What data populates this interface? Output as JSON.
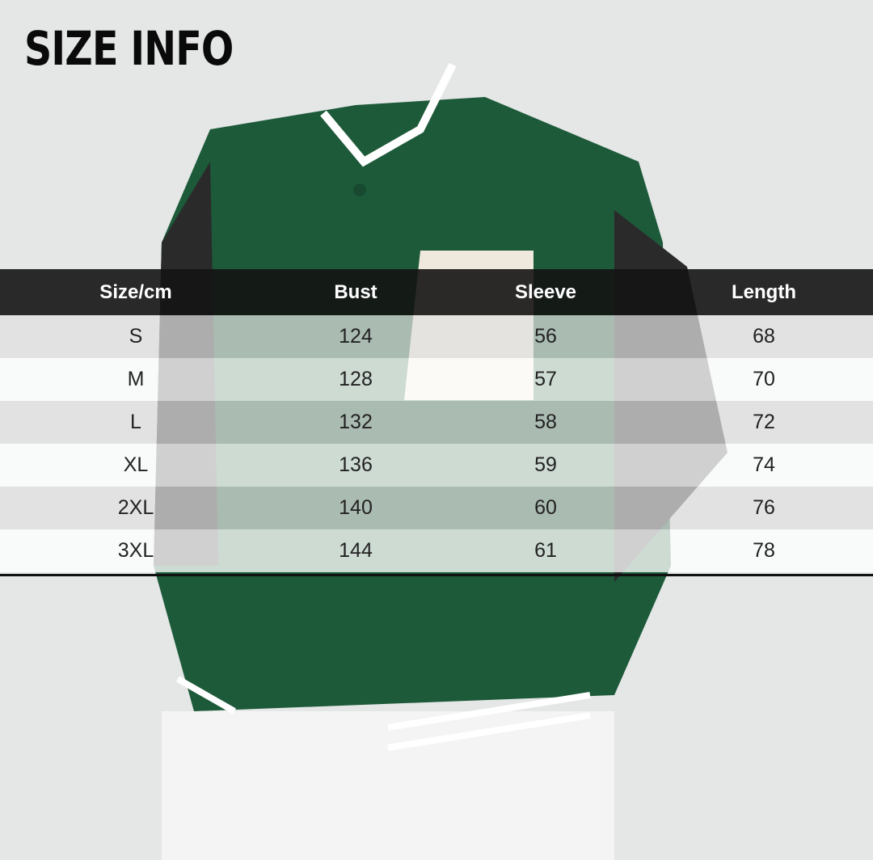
{
  "title": "SIZE INFO",
  "colors": {
    "jacket": "#1d5a3a",
    "sleeve": "#262626",
    "header": "#141414"
  },
  "table": {
    "headers": [
      "Size/cm",
      "Bust",
      "Sleeve",
      "Length"
    ],
    "rows": [
      [
        "S",
        "124",
        "56",
        "68"
      ],
      [
        "M",
        "128",
        "57",
        "70"
      ],
      [
        "L",
        "132",
        "58",
        "72"
      ],
      [
        "XL",
        "136",
        "59",
        "74"
      ],
      [
        "2XL",
        "140",
        "60",
        "76"
      ],
      [
        "3XL",
        "144",
        "61",
        "78"
      ]
    ]
  }
}
